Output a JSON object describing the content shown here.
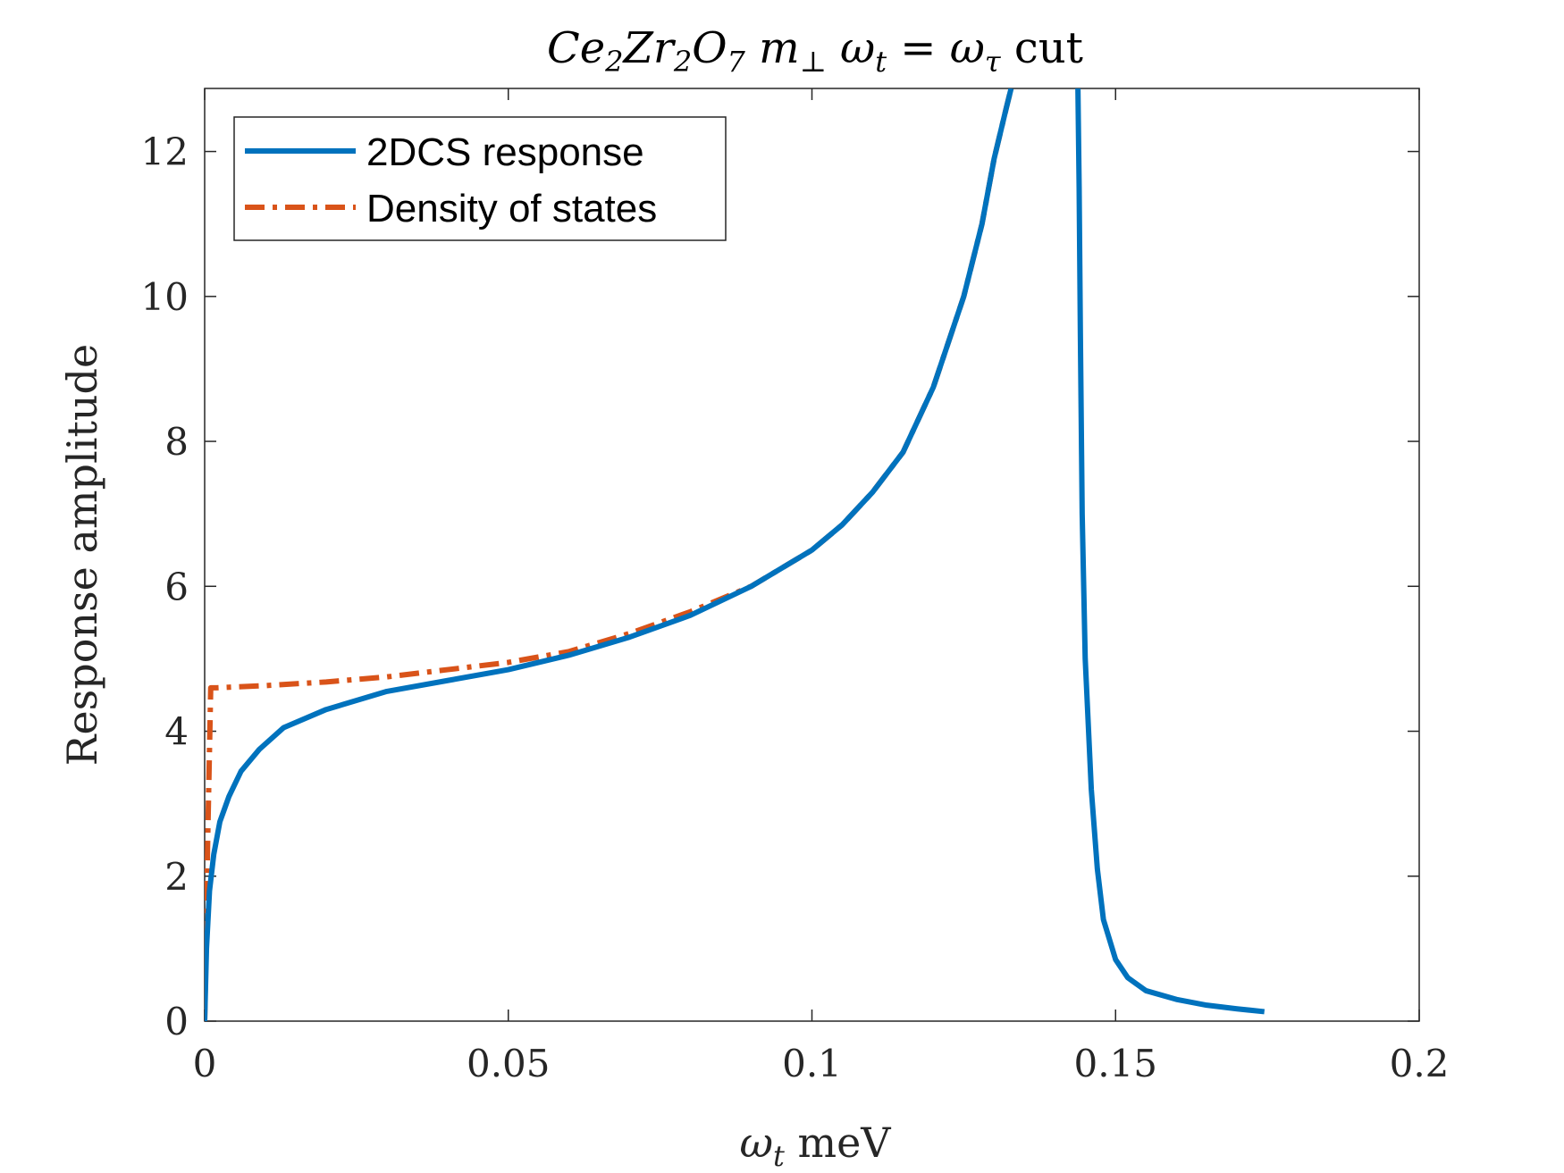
{
  "chart_data": {
    "type": "line",
    "title": "Ce₂Zr₂O₇ m⊥ ωt = ωτ cut",
    "title_parts": {
      "main": "Ce",
      "s1": "2",
      "p2": "Zr",
      "s2": "2",
      "p3": "O",
      "s3": "7",
      "p4": " m",
      "s4": "⊥",
      "p5": " ω",
      "s5": "t",
      "p6": " = ω",
      "s6": "τ",
      "p7": " cut"
    },
    "xlabel": "ωt meV",
    "xlabel_parts": {
      "main": "ω",
      "sub": "t",
      "rest": " meV"
    },
    "ylabel": "Response amplitude",
    "xlim": [
      0,
      0.2
    ],
    "ylim": [
      0,
      12.87
    ],
    "xticks": [
      0,
      0.05,
      0.1,
      0.15,
      0.2
    ],
    "xtick_labels": [
      "0",
      "0.05",
      "0.1",
      "0.15",
      "0.2"
    ],
    "yticks": [
      0,
      2,
      4,
      6,
      8,
      10,
      12
    ],
    "ytick_labels": [
      "0",
      "2",
      "4",
      "6",
      "8",
      "10",
      "12"
    ],
    "legend": {
      "placement": "top-left",
      "entries": [
        "2DCS response",
        "Density of states"
      ]
    },
    "series": [
      {
        "name": "2DCS response",
        "color": "#0072BD",
        "style": "solid",
        "x": [
          0.0,
          0.0003,
          0.0008,
          0.0015,
          0.0025,
          0.004,
          0.006,
          0.009,
          0.013,
          0.02,
          0.03,
          0.04,
          0.05,
          0.06,
          0.07,
          0.08,
          0.09,
          0.1,
          0.105,
          0.11,
          0.115,
          0.12,
          0.125,
          0.128,
          0.13,
          0.132,
          0.1328,
          null,
          0.1438,
          0.144,
          0.1442,
          0.1445,
          0.145,
          0.146,
          0.147,
          0.148,
          0.15,
          0.152,
          0.155,
          0.16,
          0.165,
          0.17,
          0.1745
        ],
        "y": [
          0.0,
          1.0,
          1.8,
          2.3,
          2.75,
          3.1,
          3.45,
          3.75,
          4.05,
          4.3,
          4.55,
          4.7,
          4.85,
          5.05,
          5.3,
          5.6,
          6.0,
          6.5,
          6.85,
          7.3,
          7.85,
          8.75,
          10.0,
          11.0,
          11.9,
          12.6,
          12.87,
          null,
          12.87,
          11.5,
          9.5,
          7.0,
          5.0,
          3.2,
          2.1,
          1.4,
          0.85,
          0.6,
          0.42,
          0.3,
          0.22,
          0.17,
          0.13
        ]
      },
      {
        "name": "Density of states",
        "color": "#D95319",
        "style": "dashdot",
        "x": [
          0.0,
          0.0005,
          0.001,
          0.002,
          0.01,
          0.02,
          0.03,
          0.04,
          0.05,
          0.06,
          0.07,
          0.08,
          0.09,
          0.1,
          0.105,
          0.11,
          0.115,
          0.12,
          0.125,
          0.128,
          0.13,
          0.132,
          0.1328
        ],
        "y": [
          0.0,
          2.5,
          4.6,
          4.6,
          4.63,
          4.68,
          4.75,
          4.85,
          4.95,
          5.1,
          5.35,
          5.65,
          6.0,
          6.5,
          6.85,
          7.3,
          7.85,
          8.75,
          10.0,
          11.0,
          11.9,
          12.6,
          12.87
        ]
      }
    ]
  }
}
